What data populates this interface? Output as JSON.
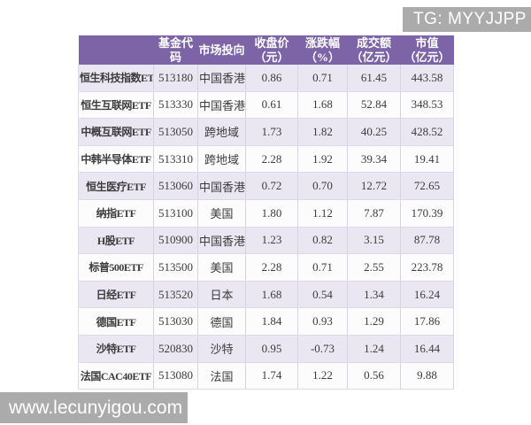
{
  "page": {
    "badge_tg": "TG: MYYJJPP",
    "watermark": "www.lecunyigou.com",
    "colors": {
      "badge_bg": "#ababab",
      "header_bg": "#7c64a6",
      "row_alt_bg": "#eae6f2",
      "row_bg": "#fcfcfd",
      "grid_line": "#d9d2e6",
      "body_text": "#3c3c3c",
      "header_text": "#ffffff"
    }
  },
  "chart_data": {
    "type": "table",
    "title": "",
    "columns": [
      {
        "id": "name",
        "label": ""
      },
      {
        "id": "code",
        "label": "基金代码"
      },
      {
        "id": "market",
        "label": "市场投向"
      },
      {
        "id": "close",
        "label": "收盘价\n（元）"
      },
      {
        "id": "change",
        "label": "涨跌幅\n（%）"
      },
      {
        "id": "turnover",
        "label": "成交额\n（亿元）"
      },
      {
        "id": "mktcap",
        "label": "市值\n（亿元）"
      }
    ],
    "rows": [
      [
        "恒生科技指数ETF",
        "513180",
        "中国香港",
        "0.86",
        "0.71",
        "61.45",
        "443.58"
      ],
      [
        "恒生互联网ETF",
        "513330",
        "中国香港",
        "0.61",
        "1.68",
        "52.84",
        "348.53"
      ],
      [
        "中概互联网ETF",
        "513050",
        "跨地域",
        "1.73",
        "1.82",
        "40.25",
        "428.52"
      ],
      [
        "中韩半导体ETF",
        "513310",
        "跨地域",
        "2.28",
        "1.92",
        "39.34",
        "19.41"
      ],
      [
        "恒生医疗ETF",
        "513060",
        "中国香港",
        "0.72",
        "0.70",
        "12.72",
        "72.65"
      ],
      [
        "纳指ETF",
        "513100",
        "美国",
        "1.80",
        "1.12",
        "7.87",
        "170.39"
      ],
      [
        "H股ETF",
        "510900",
        "中国香港",
        "1.23",
        "0.82",
        "3.15",
        "87.78"
      ],
      [
        "标普500ETF",
        "513500",
        "美国",
        "2.28",
        "0.71",
        "2.55",
        "223.78"
      ],
      [
        "日经ETF",
        "513520",
        "日本",
        "1.68",
        "0.54",
        "1.34",
        "16.24"
      ],
      [
        "德国ETF",
        "513030",
        "德国",
        "1.84",
        "0.93",
        "1.29",
        "17.86"
      ],
      [
        "沙特ETF",
        "520830",
        "沙特",
        "0.95",
        "-0.73",
        "1.24",
        "16.44"
      ],
      [
        "法国CAC40ETF",
        "513080",
        "法国",
        "1.74",
        "1.22",
        "0.56",
        "9.88"
      ]
    ]
  }
}
